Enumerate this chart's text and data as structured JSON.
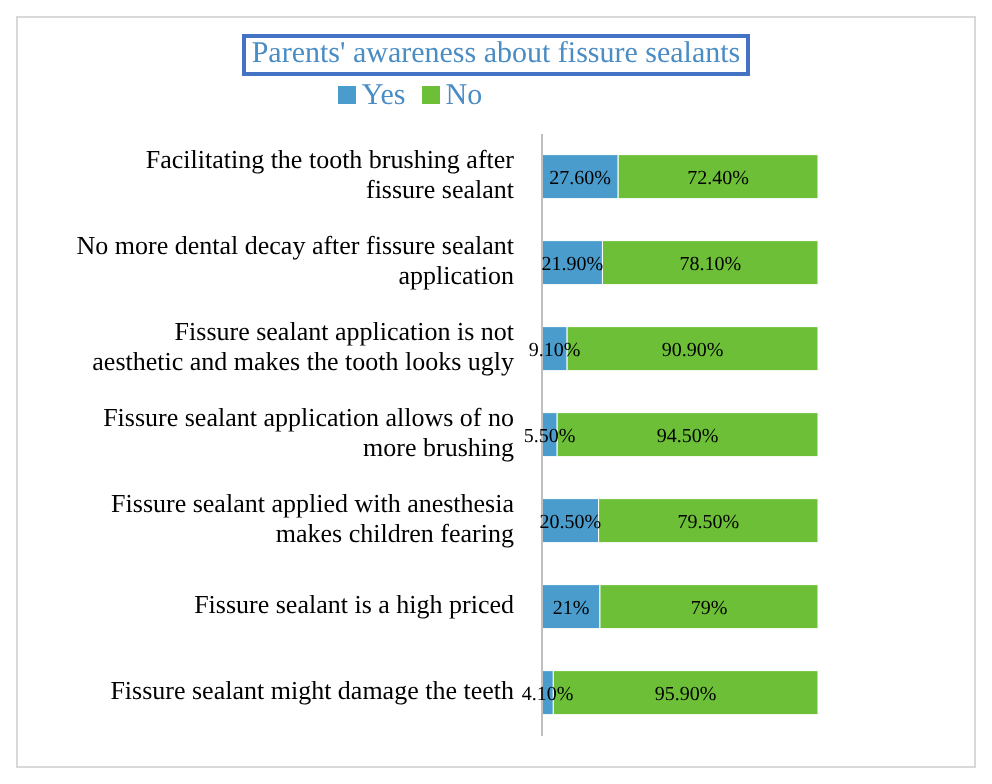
{
  "chart_data": {
    "type": "bar",
    "orientation": "horizontal",
    "stacked": true,
    "title": "Parents' awareness about fissure sealants",
    "categories": [
      "Facilitating the tooth brushing after fissure sealant",
      "No more dental decay after fissure sealant application",
      "Fissure sealant application is not aesthetic and makes the tooth looks ugly",
      "Fissure sealant application allows of no more brushing",
      "Fissure sealant applied with anesthesia makes children fearing",
      "Fissure sealant is a high priced",
      "Fissure sealant might damage the teeth"
    ],
    "series": [
      {
        "name": "Yes",
        "color": "#4a9ccc",
        "values": [
          27.6,
          21.9,
          9.1,
          5.5,
          20.5,
          21,
          4.1
        ],
        "value_labels": [
          "27.60%",
          "21.90%",
          "9.10%",
          "5.50%",
          "20.50%",
          "21%",
          "4.10%"
        ]
      },
      {
        "name": "No",
        "color": "#6cbf36",
        "values": [
          72.4,
          78.1,
          90.9,
          94.5,
          79.5,
          79,
          95.9
        ],
        "value_labels": [
          "72.40%",
          "78.10%",
          "90.90%",
          "94.50%",
          "79.50%",
          "79%",
          "95.90%"
        ]
      }
    ],
    "legend": "top"
  }
}
